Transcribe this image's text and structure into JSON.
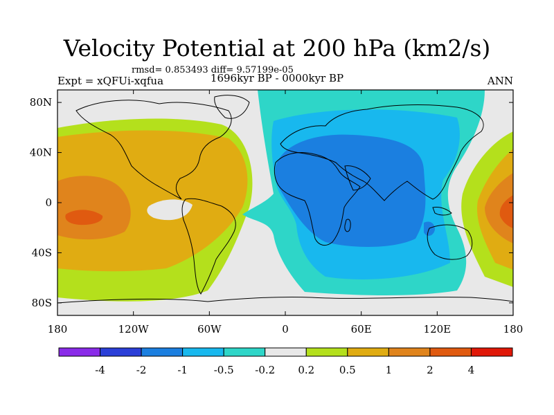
{
  "title": "Velocity Potential at 200 hPa (km2/s)",
  "stats": "rmsd= 0.853493 diff= 9.57199e-05",
  "experiment": "Expt = xQFUi-xqfua",
  "period": "1696kyr BP - 0000kyr BP",
  "season": "ANN",
  "lat_ticks": [
    "80N",
    "40N",
    "0",
    "40S",
    "80S"
  ],
  "lon_ticks": [
    "180",
    "120W",
    "60W",
    "0",
    "60E",
    "120E",
    "180"
  ],
  "colorbar": {
    "labels": [
      "-4",
      "-2",
      "-1",
      "-0.5",
      "-0.2",
      "0.2",
      "0.5",
      "1",
      "2",
      "4"
    ],
    "colors": [
      "#8a2be8",
      "#2b3fd8",
      "#1b7fe0",
      "#18b8ee",
      "#2ed6c8",
      "#e8e8e8",
      "#b4e01c",
      "#e0ac12",
      "#e0841c",
      "#e05a10",
      "#e01808"
    ]
  },
  "field_colors": {
    "land_outline": "#000000",
    "neutral": "#e8e8e8"
  }
}
